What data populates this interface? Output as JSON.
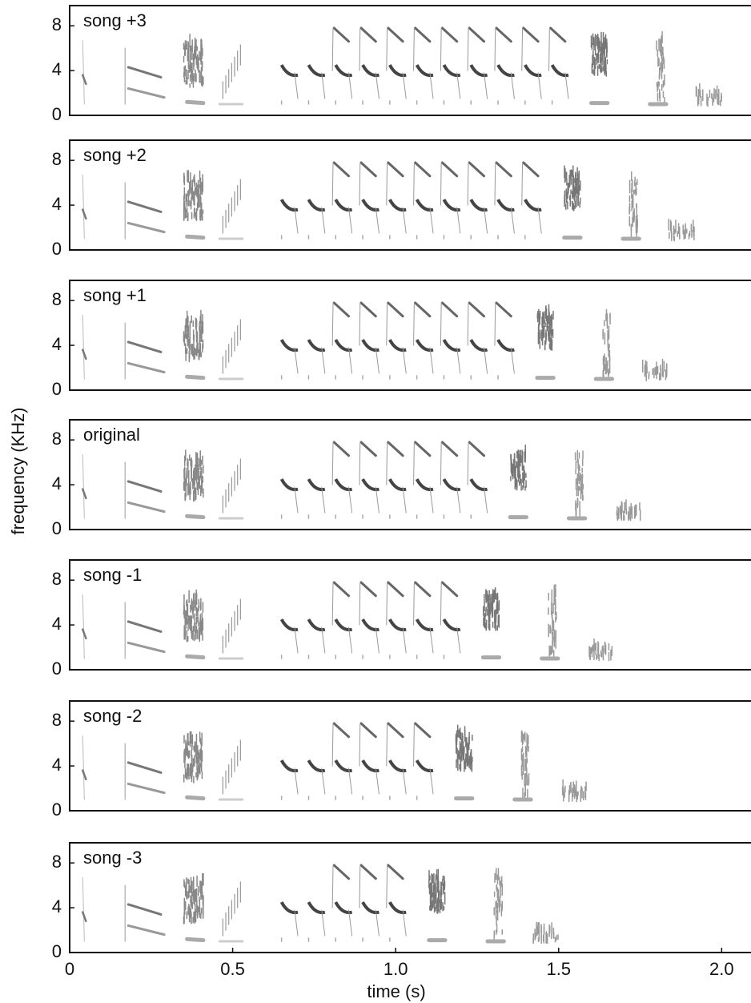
{
  "chart_data": [
    {
      "type": "spectrogram",
      "title": "song +3",
      "ylim": [
        0,
        9.8
      ],
      "yticks": [
        0,
        4,
        8
      ],
      "xlim": [
        0,
        2.09
      ]
    },
    {
      "type": "spectrogram",
      "title": "song +2",
      "ylim": [
        0,
        9.8
      ],
      "yticks": [
        0,
        4,
        8
      ],
      "xlim": [
        0,
        2.09
      ]
    },
    {
      "type": "spectrogram",
      "title": "song +1",
      "ylim": [
        0,
        9.8
      ],
      "yticks": [
        0,
        4,
        8
      ],
      "xlim": [
        0,
        2.09
      ]
    },
    {
      "type": "spectrogram",
      "title": "original",
      "ylim": [
        0,
        9.8
      ],
      "yticks": [
        0,
        4,
        8
      ],
      "xlim": [
        0,
        2.09
      ],
      "ylabel": "frequency (KHz)"
    },
    {
      "type": "spectrogram",
      "title": "song -1",
      "ylim": [
        0,
        9.8
      ],
      "yticks": [
        0,
        4,
        8
      ],
      "xlim": [
        0,
        2.09
      ]
    },
    {
      "type": "spectrogram",
      "title": "song -2",
      "ylim": [
        0,
        9.8
      ],
      "yticks": [
        0,
        4,
        8
      ],
      "xlim": [
        0,
        2.09
      ]
    },
    {
      "type": "spectrogram",
      "title": "song -3",
      "ylim": [
        0,
        9.8
      ],
      "yticks": [
        0,
        4,
        8
      ],
      "xlim": [
        0,
        2.09
      ],
      "xticks": [
        0,
        0.5,
        {
          "value": 1,
          "label": "1.0"
        },
        1.5,
        {
          "value": 2,
          "label": "2.0"
        }
      ],
      "xlabel": "time (s)"
    }
  ]
}
